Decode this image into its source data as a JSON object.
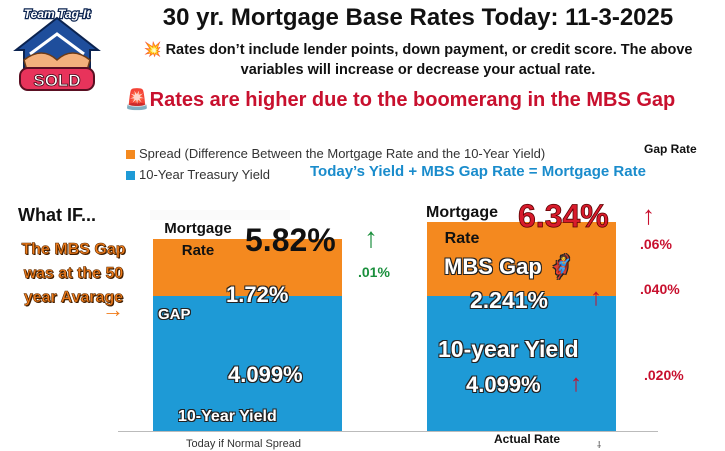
{
  "logo": {
    "top_text": "Team Tag-It",
    "badge_text": "SOLD",
    "icon": "handshake-house-icon"
  },
  "title": "30 yr. Mortgage Base Rates Today: 11-3-2025",
  "note": "💥 Rates don’t include lender points, down payment, or credit score. The above variables will increase or decrease your actual rate.",
  "alert": "🚨Rates are higher due to the boomerang in the MBS Gap",
  "legend": [
    {
      "label": "Spread (Difference Between the Mortgage Rate and the 10-Year Yield)",
      "color": "#f4891f"
    },
    {
      "label": "10-Year Treasury Yield",
      "color": "#1e9ad6"
    }
  ],
  "gap_rate_label": "Gap Rate",
  "formula": "Today’s  Yield +  MBS Gap Rate = Mortgage Rate",
  "what_if": "What IF...",
  "mbs_gap_text": "The MBS Gap was at the 50 year Avarage",
  "arrow_right": "→",
  "colors": {
    "spread": "#f4891f",
    "yield": "#1e9ad6",
    "up_green": "#1a8f3c",
    "up_red": "#c8102e"
  },
  "chart_data": {
    "type": "bar",
    "stacked": true,
    "categories": [
      "Today if Normal Spread",
      "Actual Rate"
    ],
    "series": [
      {
        "name": "10-Year Treasury Yield",
        "values": [
          4.099,
          4.099
        ]
      },
      {
        "name": "Spread (Difference Between the Mortgage Rate and the 10-Year Yield)",
        "values": [
          1.72,
          2.241
        ]
      }
    ],
    "ylim": [
      0,
      7.0
    ],
    "grid": false,
    "legend_position": "top-left",
    "left_bar": {
      "mortgage_label": "Mortgage Rate",
      "total_label": "5.82%",
      "delta": ".01%",
      "spread_tag": "GAP",
      "spread_label": "1.72%",
      "yield_label": "4.099%",
      "yield_tag": "10-Year Yield"
    },
    "right_bar": {
      "mortgage_label": "Mortgage Rate",
      "total_label": "6.34%",
      "total_delta": ".06%",
      "spread_tag": "MBS Gap 🦸",
      "spread_label": "2.241%",
      "spread_delta": ".040%",
      "yield_tag": "10-year Yield",
      "yield_label": "4.099%",
      "yield_delta": ".020%"
    },
    "extra_mark": "⸸"
  }
}
